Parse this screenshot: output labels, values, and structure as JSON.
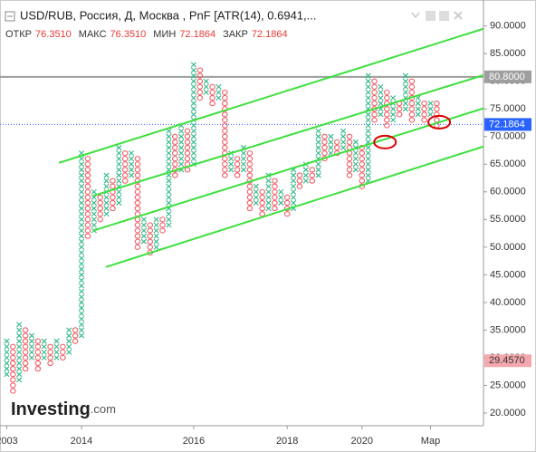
{
  "chart_data": {
    "type": "pnf",
    "title": "USD/RUB, Россия, Д, Москва , PnF [ATR(14), 0.6941,...",
    "quote": [
      {
        "label": "ОТКР",
        "value": "76.3510"
      },
      {
        "label": "МАКС",
        "value": "76.3510"
      },
      {
        "label": "МИН",
        "value": "72.1864"
      },
      {
        "label": "ЗАКР",
        "value": "72.1864"
      }
    ],
    "brand": {
      "name": "Investing",
      "suffix": ".com"
    },
    "box_size": 1,
    "x_color": "#2eb88a",
    "o_color": "#f0606a",
    "columns": [
      {
        "dir": "x",
        "low": 27,
        "high": 33
      },
      {
        "dir": "o",
        "low": 24,
        "high": 32
      },
      {
        "dir": "x",
        "low": 26,
        "high": 36
      },
      {
        "dir": "o",
        "low": 28,
        "high": 35
      },
      {
        "dir": "x",
        "low": 30,
        "high": 34
      },
      {
        "dir": "o",
        "low": 28,
        "high": 33
      },
      {
        "dir": "x",
        "low": 30,
        "high": 33
      },
      {
        "dir": "o",
        "low": 29,
        "high": 32
      },
      {
        "dir": "x",
        "low": 30,
        "high": 33
      },
      {
        "dir": "o",
        "low": 30,
        "high": 32
      },
      {
        "dir": "x",
        "low": 31,
        "high": 35
      },
      {
        "dir": "o",
        "low": 33,
        "high": 35
      },
      {
        "dir": "x",
        "low": 34,
        "high": 67
      },
      {
        "dir": "o",
        "low": 52,
        "high": 66
      },
      {
        "dir": "x",
        "low": 53,
        "high": 60
      },
      {
        "dir": "o",
        "low": 55,
        "high": 59
      },
      {
        "dir": "x",
        "low": 56,
        "high": 63
      },
      {
        "dir": "o",
        "low": 57,
        "high": 62
      },
      {
        "dir": "x",
        "low": 58,
        "high": 68
      },
      {
        "dir": "o",
        "low": 62,
        "high": 67
      },
      {
        "dir": "x",
        "low": 63,
        "high": 67
      },
      {
        "dir": "o",
        "low": 50,
        "high": 66
      },
      {
        "dir": "x",
        "low": 51,
        "high": 55
      },
      {
        "dir": "o",
        "low": 49,
        "high": 54
      },
      {
        "dir": "x",
        "low": 50,
        "high": 55
      },
      {
        "dir": "o",
        "low": 53,
        "high": 55
      },
      {
        "dir": "x",
        "low": 54,
        "high": 71
      },
      {
        "dir": "o",
        "low": 63,
        "high": 70
      },
      {
        "dir": "x",
        "low": 64,
        "high": 72
      },
      {
        "dir": "o",
        "low": 64,
        "high": 71
      },
      {
        "dir": "x",
        "low": 65,
        "high": 83
      },
      {
        "dir": "o",
        "low": 77,
        "high": 82
      },
      {
        "dir": "x",
        "low": 78,
        "high": 80
      },
      {
        "dir": "o",
        "low": 76,
        "high": 79
      },
      {
        "dir": "x",
        "low": 77,
        "high": 79
      },
      {
        "dir": "o",
        "low": 63,
        "high": 78
      },
      {
        "dir": "x",
        "low": 64,
        "high": 67
      },
      {
        "dir": "o",
        "low": 63,
        "high": 66
      },
      {
        "dir": "x",
        "low": 64,
        "high": 68
      },
      {
        "dir": "o",
        "low": 57,
        "high": 67
      },
      {
        "dir": "x",
        "low": 58,
        "high": 61
      },
      {
        "dir": "o",
        "low": 56,
        "high": 60
      },
      {
        "dir": "x",
        "low": 57,
        "high": 63
      },
      {
        "dir": "o",
        "low": 57,
        "high": 62
      },
      {
        "dir": "x",
        "low": 58,
        "high": 60
      },
      {
        "dir": "o",
        "low": 56,
        "high": 59
      },
      {
        "dir": "x",
        "low": 57,
        "high": 64
      },
      {
        "dir": "o",
        "low": 61,
        "high": 63
      },
      {
        "dir": "x",
        "low": 62,
        "high": 65
      },
      {
        "dir": "o",
        "low": 62,
        "high": 64
      },
      {
        "dir": "x",
        "low": 63,
        "high": 71
      },
      {
        "dir": "o",
        "low": 66,
        "high": 70
      },
      {
        "dir": "x",
        "low": 67,
        "high": 70
      },
      {
        "dir": "o",
        "low": 67,
        "high": 69
      },
      {
        "dir": "x",
        "low": 68,
        "high": 71
      },
      {
        "dir": "o",
        "low": 63,
        "high": 70
      },
      {
        "dir": "x",
        "low": 64,
        "high": 69
      },
      {
        "dir": "o",
        "low": 61,
        "high": 68
      },
      {
        "dir": "x",
        "low": 62,
        "high": 81
      },
      {
        "dir": "o",
        "low": 73,
        "high": 80
      },
      {
        "dir": "x",
        "low": 74,
        "high": 79
      },
      {
        "dir": "o",
        "low": 72,
        "high": 78
      },
      {
        "dir": "x",
        "low": 73,
        "high": 77
      },
      {
        "dir": "o",
        "low": 74,
        "high": 76
      },
      {
        "dir": "x",
        "low": 75,
        "high": 81
      },
      {
        "dir": "o",
        "low": 73,
        "high": 80
      },
      {
        "dir": "x",
        "low": 74,
        "high": 77
      },
      {
        "dir": "o",
        "low": 73,
        "high": 76
      },
      {
        "dir": "x",
        "low": 74,
        "high": 76
      },
      {
        "dir": "o",
        "low": 72,
        "high": 76
      }
    ],
    "xlim": [
      -0.5,
      76.5
    ],
    "xticks": [
      {
        "value": 0,
        "label": "2003"
      },
      {
        "value": 12,
        "label": "2014"
      },
      {
        "value": 30,
        "label": "2016"
      },
      {
        "value": 45,
        "label": "2018"
      },
      {
        "value": 57,
        "label": "2020"
      },
      {
        "value": 68,
        "label": "Мар"
      }
    ],
    "ylim": [
      17.7,
      94.7
    ],
    "yticks": [
      {
        "value": 20,
        "label": "20.0000"
      },
      {
        "value": 25,
        "label": "25.0000"
      },
      {
        "value": 30,
        "label": "30.0000"
      },
      {
        "value": 35,
        "label": "35.0000"
      },
      {
        "value": 40,
        "label": "40.0000"
      },
      {
        "value": 45,
        "label": "45.0000"
      },
      {
        "value": 50,
        "label": "50.0000"
      },
      {
        "value": 55,
        "label": "55.0000"
      },
      {
        "value": 60,
        "label": "60.0000"
      },
      {
        "value": 65,
        "label": "65.0000"
      },
      {
        "value": 70,
        "label": "70.0000"
      },
      {
        "value": 75,
        "label": "75.0000"
      },
      {
        "value": 80,
        "label": "80.0000"
      },
      {
        "value": 85,
        "label": "85.0000"
      },
      {
        "value": 90,
        "label": "90.0000"
      }
    ],
    "trend_color": "#3ee03e",
    "trend_lines": [
      {
        "x": [
          8.37,
          76.5
        ],
        "y": [
          65.25,
          89.5
        ]
      },
      {
        "x": [
          13.9,
          76.5
        ],
        "y": [
          59.3,
          81.1
        ]
      },
      {
        "x": [
          13.9,
          76.5
        ],
        "y": [
          53.0,
          75.1
        ]
      },
      {
        "x": [
          15.9,
          76.5
        ],
        "y": [
          46.4,
          68.2
        ]
      }
    ],
    "highlights": [
      {
        "x": 60.7,
        "y": 69.0
      },
      {
        "x": 69.4,
        "y": 72.6
      }
    ],
    "price_labels": [
      {
        "value": 80.8,
        "label": "80.8000",
        "color": "#9e9e9e",
        "line": "solid"
      },
      {
        "value": 72.1864,
        "label": "72.1864",
        "color": "#2962ff",
        "line": "dotted"
      },
      {
        "value": 29.457,
        "label": "29.4570",
        "color": "#f4a8ae",
        "line": "none"
      }
    ]
  }
}
